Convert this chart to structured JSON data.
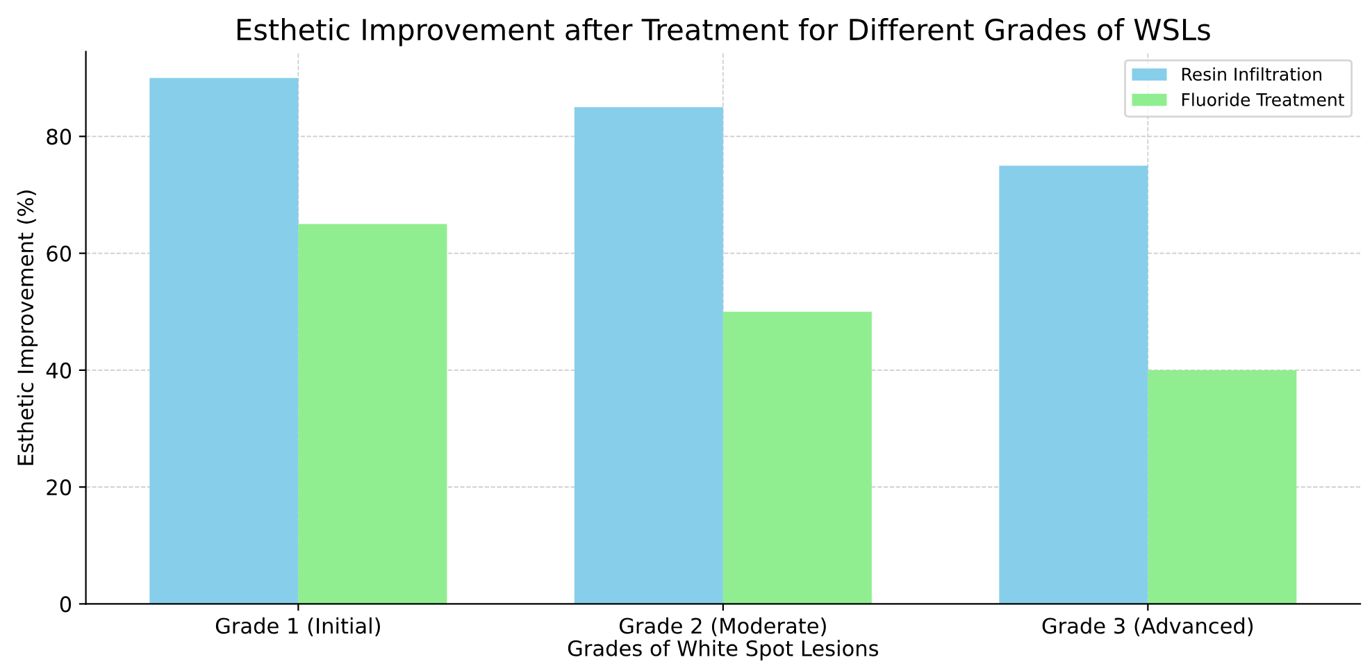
{
  "chart_data": {
    "type": "bar",
    "title": "Esthetic Improvement after Treatment for Different Grades of WSLs",
    "xlabel": "Grades of White Spot Lesions",
    "ylabel": "Esthetic Improvement (%)",
    "categories": [
      "Grade 1 (Initial)",
      "Grade 2 (Moderate)",
      "Grade 3 (Advanced)"
    ],
    "series": [
      {
        "name": "Resin Infiltration",
        "color": "#87ceeb",
        "values": [
          90,
          85,
          75
        ]
      },
      {
        "name": "Fluoride Treatment",
        "color": "#90ee90",
        "values": [
          65,
          50,
          40
        ]
      }
    ],
    "ylim": [
      0,
      94.5
    ],
    "yticks": [
      0,
      20,
      40,
      60,
      80
    ],
    "grid": true,
    "legend": "top right"
  }
}
